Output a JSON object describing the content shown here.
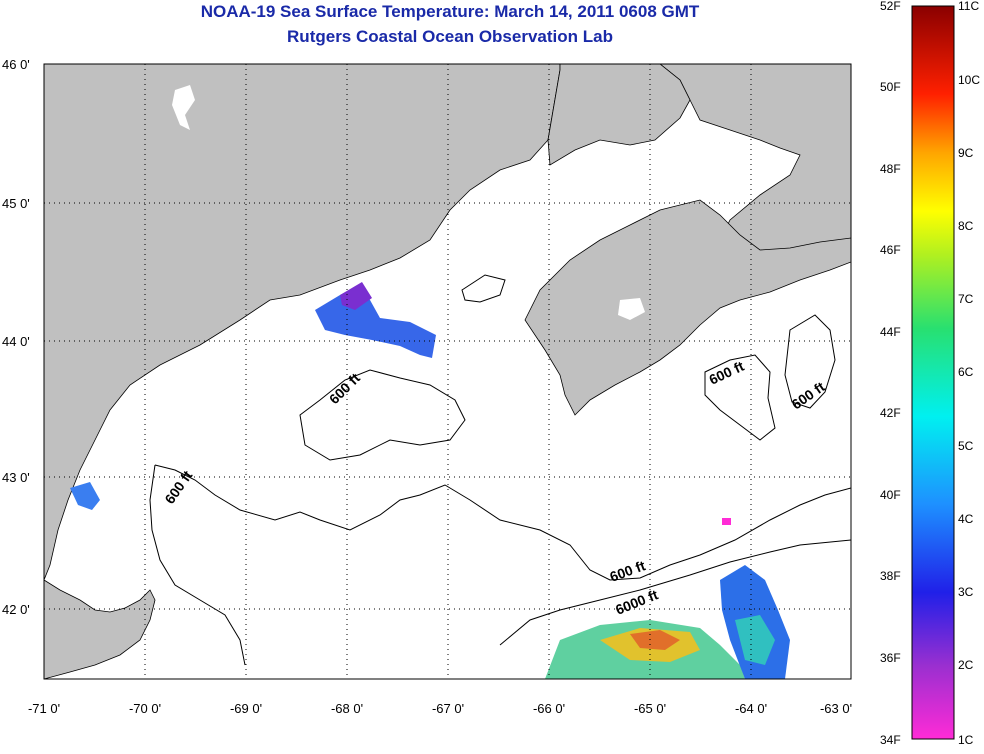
{
  "title": "NOAA-19 Sea Surface Temperature:  March 14, 2011 0608 GMT",
  "subtitle": "Rutgers Coastal Ocean Observation Lab",
  "axes": {
    "lat_labels": [
      "46 0'",
      "45 0'",
      "44 0'",
      "43 0'",
      "42 0'"
    ],
    "lon_labels": [
      "-71 0'",
      "-70 0'",
      "-69 0'",
      "-68 0'",
      "-67 0'",
      "-66 0'",
      "-65 0'",
      "-64 0'",
      "-63 0'"
    ]
  },
  "contours": {
    "labels": [
      "600 ft",
      "600 ft",
      "600 ft",
      "600 ft",
      "600 ft",
      "6000 ft"
    ]
  },
  "colorbar": {
    "fahrenheit": [
      "52F",
      "50F",
      "48F",
      "46F",
      "44F",
      "42F",
      "40F",
      "38F",
      "36F",
      "34F"
    ],
    "celsius": [
      "11C",
      "10C",
      "9C",
      "8C",
      "7C",
      "6C",
      "5C",
      "4C",
      "3C",
      "2C",
      "1C"
    ]
  },
  "colors": {
    "land": "#c0c0c0",
    "water": "#ffffff",
    "title": "#1a2aa8"
  }
}
